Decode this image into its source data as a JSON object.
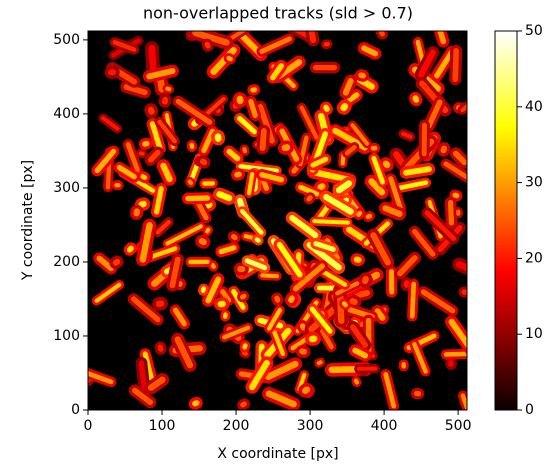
{
  "chart_data": {
    "type": "heatmap",
    "title": "non-overlapped tracks (sld > 0.7)",
    "x_label": "X coordinate [px]",
    "y_label": "Y coordinate [px]",
    "xlim": [
      0,
      512
    ],
    "ylim": [
      0,
      512
    ],
    "xticks": [
      0,
      100,
      200,
      300,
      400,
      500
    ],
    "yticks": [
      0,
      100,
      200,
      300,
      400,
      500
    ],
    "colormap": "hot",
    "colorbar": {
      "lim": [
        0,
        50
      ],
      "ticks": [
        0,
        10,
        20,
        30,
        40,
        50
      ]
    }
  }
}
